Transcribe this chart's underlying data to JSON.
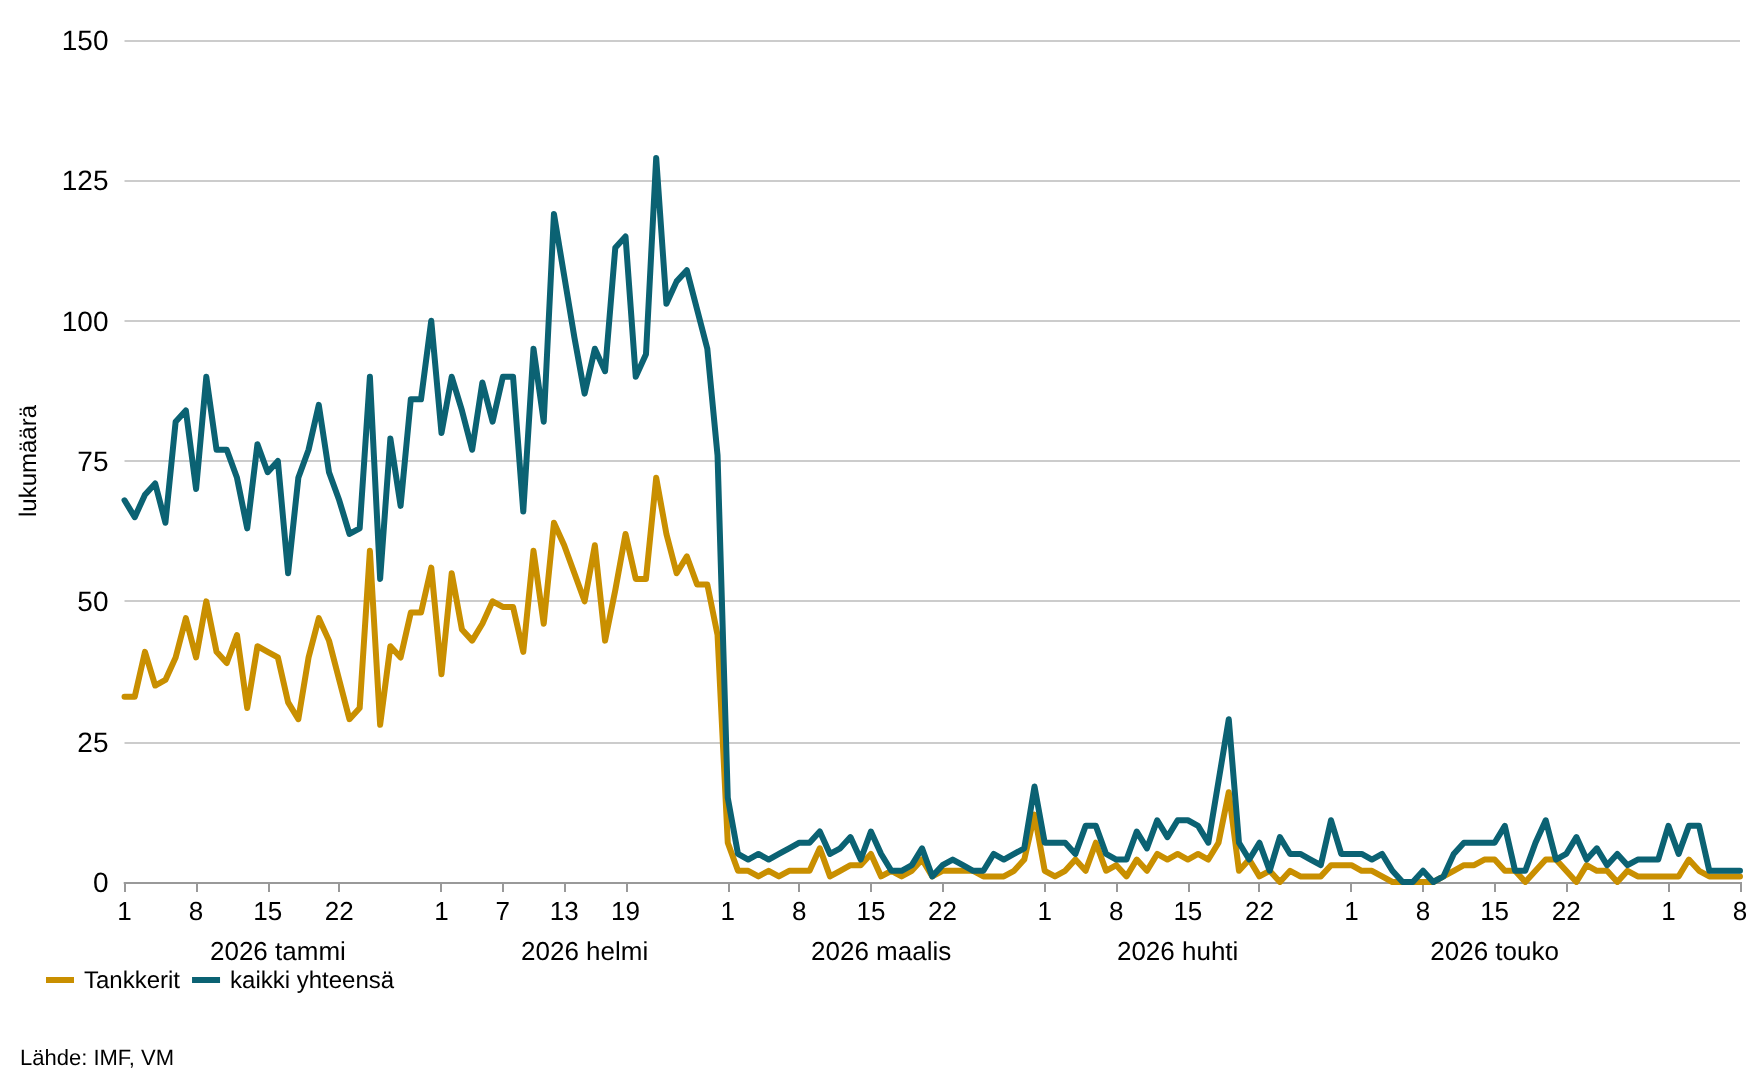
{
  "chart_data": {
    "type": "line",
    "ylabel": "lukumäärä",
    "x": [
      "2026-01-01",
      "2026-01-02",
      "2026-01-03",
      "2026-01-04",
      "2026-01-05",
      "2026-01-06",
      "2026-01-07",
      "2026-01-08",
      "2026-01-09",
      "2026-01-10",
      "2026-01-11",
      "2026-01-12",
      "2026-01-13",
      "2026-01-14",
      "2026-01-15",
      "2026-01-16",
      "2026-01-17",
      "2026-01-18",
      "2026-01-19",
      "2026-01-20",
      "2026-01-21",
      "2026-01-22",
      "2026-01-23",
      "2026-01-24",
      "2026-01-25",
      "2026-01-26",
      "2026-01-27",
      "2026-01-28",
      "2026-01-29",
      "2026-01-30",
      "2026-01-31",
      "2026-02-01",
      "2026-02-02",
      "2026-02-03",
      "2026-02-04",
      "2026-02-05",
      "2026-02-06",
      "2026-02-07",
      "2026-02-08",
      "2026-02-09",
      "2026-02-10",
      "2026-02-11",
      "2026-02-12",
      "2026-02-13",
      "2026-02-14",
      "2026-02-15",
      "2026-02-16",
      "2026-02-17",
      "2026-02-18",
      "2026-02-19",
      "2026-02-20",
      "2026-02-21",
      "2026-02-22",
      "2026-02-23",
      "2026-02-24",
      "2026-02-25",
      "2026-02-26",
      "2026-02-27",
      "2026-02-28",
      "2026-03-01",
      "2026-03-02",
      "2026-03-03",
      "2026-03-04",
      "2026-03-05",
      "2026-03-06",
      "2026-03-07",
      "2026-03-08",
      "2026-03-09",
      "2026-03-10",
      "2026-03-11",
      "2026-03-12",
      "2026-03-13",
      "2026-03-14",
      "2026-03-15",
      "2026-03-16",
      "2026-03-17",
      "2026-03-18",
      "2026-03-19",
      "2026-03-20",
      "2026-03-21",
      "2026-03-22",
      "2026-03-23",
      "2026-03-24",
      "2026-03-25",
      "2026-03-26",
      "2026-03-27",
      "2026-03-28",
      "2026-03-29",
      "2026-03-30",
      "2026-03-31",
      "2026-04-01",
      "2026-04-02",
      "2026-04-03",
      "2026-04-04",
      "2026-04-05",
      "2026-04-06",
      "2026-04-07",
      "2026-04-08",
      "2026-04-09",
      "2026-04-10",
      "2026-04-11",
      "2026-04-12",
      "2026-04-13",
      "2026-04-14",
      "2026-04-15",
      "2026-04-16",
      "2026-04-17",
      "2026-04-18",
      "2026-04-19",
      "2026-04-20",
      "2026-04-21",
      "2026-04-22",
      "2026-04-23",
      "2026-04-24",
      "2026-04-25",
      "2026-04-26",
      "2026-04-27",
      "2026-04-28",
      "2026-04-29",
      "2026-04-30",
      "2026-05-01",
      "2026-05-02",
      "2026-05-03",
      "2026-05-04",
      "2026-05-05",
      "2026-05-06",
      "2026-05-07",
      "2026-05-08",
      "2026-05-09",
      "2026-05-10",
      "2026-05-11",
      "2026-05-12",
      "2026-05-13",
      "2026-05-14",
      "2026-05-15",
      "2026-05-16",
      "2026-05-17",
      "2026-05-18",
      "2026-05-19",
      "2026-05-20",
      "2026-05-21",
      "2026-05-22",
      "2026-05-23",
      "2026-05-24",
      "2026-05-25",
      "2026-05-26",
      "2026-05-27",
      "2026-05-28",
      "2026-05-29",
      "2026-05-30",
      "2026-05-31",
      "2026-06-01",
      "2026-06-02",
      "2026-06-03",
      "2026-06-04",
      "2026-06-05",
      "2026-06-06",
      "2026-06-07",
      "2026-06-08"
    ],
    "series": [
      {
        "name": "Tankkerit",
        "color": "#c98f00",
        "values": [
          33,
          33,
          41,
          35,
          36,
          40,
          47,
          40,
          50,
          41,
          39,
          44,
          31,
          42,
          41,
          40,
          32,
          29,
          40,
          47,
          43,
          36,
          29,
          31,
          59,
          28,
          42,
          40,
          48,
          48,
          56,
          37,
          55,
          45,
          43,
          46,
          50,
          49,
          49,
          41,
          59,
          46,
          64,
          60,
          55,
          50,
          60,
          43,
          52,
          62,
          54,
          54,
          72,
          62,
          55,
          58,
          53,
          53,
          44,
          7,
          2,
          2,
          1,
          2,
          1,
          2,
          2,
          2,
          6,
          1,
          2,
          3,
          3,
          5,
          1,
          2,
          1,
          2,
          4,
          1,
          2,
          2,
          2,
          2,
          1,
          1,
          1,
          2,
          4,
          12,
          2,
          1,
          2,
          4,
          2,
          7,
          2,
          3,
          1,
          4,
          2,
          5,
          4,
          5,
          4,
          5,
          4,
          7,
          16,
          2,
          4,
          1,
          2,
          0,
          2,
          1,
          1,
          1,
          3,
          3,
          3,
          2,
          2,
          1,
          0,
          0,
          0,
          0,
          0,
          1,
          2,
          3,
          3,
          4,
          4,
          2,
          2,
          0,
          2,
          4,
          4,
          2,
          0,
          3,
          2,
          2,
          0,
          2,
          1,
          1,
          1,
          1,
          1,
          4,
          2,
          1,
          1,
          1,
          1
        ]
      },
      {
        "name": "kaikki yhteensä",
        "color": "#0b6273",
        "values": [
          68,
          65,
          69,
          71,
          64,
          82,
          84,
          70,
          90,
          77,
          77,
          72,
          63,
          78,
          73,
          75,
          55,
          72,
          77,
          85,
          73,
          68,
          62,
          63,
          90,
          54,
          79,
          67,
          86,
          86,
          100,
          80,
          90,
          84,
          77,
          89,
          82,
          90,
          90,
          66,
          95,
          82,
          119,
          108,
          97,
          87,
          95,
          91,
          113,
          115,
          90,
          94,
          129,
          103,
          107,
          109,
          102,
          95,
          76,
          15,
          5,
          4,
          5,
          4,
          5,
          6,
          7,
          7,
          9,
          5,
          6,
          8,
          4,
          9,
          5,
          2,
          2,
          3,
          6,
          1,
          3,
          4,
          3,
          2,
          2,
          5,
          4,
          5,
          6,
          17,
          7,
          7,
          7,
          5,
          10,
          10,
          5,
          4,
          4,
          9,
          6,
          11,
          8,
          11,
          11,
          10,
          7,
          18,
          29,
          7,
          4,
          7,
          2,
          8,
          5,
          5,
          4,
          3,
          11,
          5,
          5,
          5,
          4,
          5,
          2,
          0,
          0,
          2,
          0,
          1,
          5,
          7,
          7,
          7,
          7,
          10,
          2,
          2,
          7,
          11,
          4,
          5,
          8,
          4,
          6,
          3,
          5,
          3,
          4,
          4,
          4,
          10,
          5,
          10,
          10,
          2,
          2,
          2,
          2
        ]
      }
    ],
    "xlim": [
      "2026-01-01",
      "2026-06-08"
    ],
    "xticks": [
      {
        "value": "2026-01-01",
        "label": "1"
      },
      {
        "value": "2026-01-08",
        "label": "8"
      },
      {
        "value": "2026-01-15",
        "label": "15"
      },
      {
        "value": "2026-01-22",
        "label": "22"
      },
      {
        "value": "2026-02-01",
        "label": "1"
      },
      {
        "value": "2026-02-07",
        "label": "7"
      },
      {
        "value": "2026-02-13",
        "label": "13"
      },
      {
        "value": "2026-02-19",
        "label": "19"
      },
      {
        "value": "2026-03-01",
        "label": "1"
      },
      {
        "value": "2026-03-08",
        "label": "8"
      },
      {
        "value": "2026-03-15",
        "label": "15"
      },
      {
        "value": "2026-03-22",
        "label": "22"
      },
      {
        "value": "2026-04-01",
        "label": "1"
      },
      {
        "value": "2026-04-08",
        "label": "8"
      },
      {
        "value": "2026-04-15",
        "label": "15"
      },
      {
        "value": "2026-04-22",
        "label": "22"
      },
      {
        "value": "2026-05-01",
        "label": "1"
      },
      {
        "value": "2026-05-08",
        "label": "8"
      },
      {
        "value": "2026-05-15",
        "label": "15"
      },
      {
        "value": "2026-05-22",
        "label": "22"
      },
      {
        "value": "2026-06-01",
        "label": "1"
      },
      {
        "value": "2026-06-08",
        "label": "8"
      }
    ],
    "x2lim": [
      "2026-01-01",
      "2026-06-08"
    ],
    "x2ticks": [
      {
        "value": "2026-01-16",
        "label": "2026 tammi"
      },
      {
        "value": "2026-02-15",
        "label": "2026 helmi"
      },
      {
        "value": "2026-03-16",
        "label": "2026 maalis"
      },
      {
        "value": "2026-04-14",
        "label": "2026 huhti"
      },
      {
        "value": "2026-05-15",
        "label": "2026 touko"
      }
    ],
    "ylim": [
      0,
      150
    ],
    "yticks": [
      0,
      25,
      50,
      75,
      100,
      125,
      150
    ],
    "grid": "y",
    "legend": "bottom left",
    "marker": "none",
    "line_style": "solid",
    "annotations": [
      "Lähde: IMF, VM"
    ]
  }
}
